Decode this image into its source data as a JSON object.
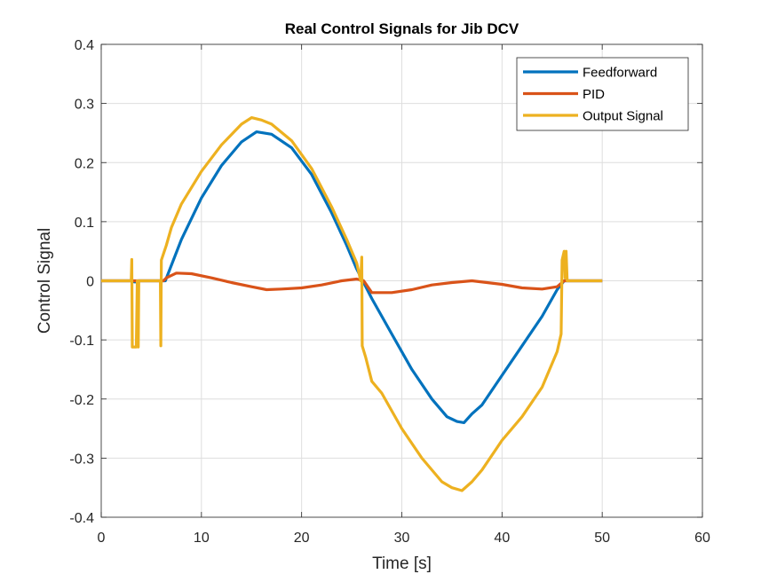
{
  "chart_data": {
    "type": "line",
    "title": "Real Control Signals for Jib DCV",
    "xlabel": "Time [s]",
    "ylabel": "Control Signal",
    "xlim": [
      0,
      60
    ],
    "ylim": [
      -0.4,
      0.4
    ],
    "x_ticks": [
      0,
      10,
      20,
      30,
      40,
      50,
      60
    ],
    "y_ticks": [
      -0.4,
      -0.3,
      -0.2,
      -0.1,
      0,
      0.1,
      0.2,
      0.3,
      0.4
    ],
    "x_tick_labels": [
      "0",
      "10",
      "20",
      "30",
      "40",
      "50",
      "60"
    ],
    "y_tick_labels": [
      "-0.4",
      "-0.3",
      "-0.2",
      "-0.1",
      "0",
      "0.1",
      "0.2",
      "0.3",
      "0.4"
    ],
    "grid": true,
    "legend_position": "top-right",
    "series": [
      {
        "name": "Feedforward",
        "color": "#0072BD",
        "points": [
          [
            0,
            0
          ],
          [
            3.2,
            0
          ],
          [
            3.3,
            -0.002
          ],
          [
            3.6,
            -0.002
          ],
          [
            3.7,
            0
          ],
          [
            6.0,
            0
          ],
          [
            6.4,
            0.0
          ],
          [
            8,
            0.07
          ],
          [
            10,
            0.14
          ],
          [
            12,
            0.195
          ],
          [
            14,
            0.235
          ],
          [
            15.5,
            0.252
          ],
          [
            17,
            0.248
          ],
          [
            19,
            0.225
          ],
          [
            21,
            0.18
          ],
          [
            23,
            0.115
          ],
          [
            24.5,
            0.06
          ],
          [
            25.5,
            0.02
          ],
          [
            26.1,
            0.0
          ],
          [
            27,
            -0.03
          ],
          [
            29,
            -0.09
          ],
          [
            31,
            -0.15
          ],
          [
            33,
            -0.2
          ],
          [
            34.5,
            -0.23
          ],
          [
            35.5,
            -0.238
          ],
          [
            36.2,
            -0.24
          ],
          [
            37,
            -0.225
          ],
          [
            38,
            -0.21
          ],
          [
            40,
            -0.16
          ],
          [
            42,
            -0.11
          ],
          [
            44,
            -0.06
          ],
          [
            45.5,
            -0.015
          ],
          [
            46.2,
            0.0
          ],
          [
            50,
            0.0
          ]
        ]
      },
      {
        "name": "PID",
        "color": "#D95319",
        "points": [
          [
            0,
            0
          ],
          [
            6.2,
            0
          ],
          [
            6.5,
            0.005
          ],
          [
            7.5,
            0.013
          ],
          [
            9,
            0.012
          ],
          [
            11,
            0.005
          ],
          [
            13,
            -0.003
          ],
          [
            15,
            -0.01
          ],
          [
            16.5,
            -0.015
          ],
          [
            18,
            -0.014
          ],
          [
            20,
            -0.012
          ],
          [
            22,
            -0.007
          ],
          [
            24,
            0.0
          ],
          [
            25.5,
            0.003
          ],
          [
            26.2,
            0.0
          ],
          [
            27,
            -0.02
          ],
          [
            29,
            -0.02
          ],
          [
            31,
            -0.015
          ],
          [
            33,
            -0.007
          ],
          [
            35,
            -0.003
          ],
          [
            37,
            0.0
          ],
          [
            38.5,
            -0.003
          ],
          [
            40,
            -0.006
          ],
          [
            42,
            -0.012
          ],
          [
            44,
            -0.014
          ],
          [
            45.5,
            -0.01
          ],
          [
            46.2,
            0.0
          ],
          [
            50,
            0.0
          ]
        ]
      },
      {
        "name": "Output Signal",
        "color": "#EDB120",
        "points": [
          [
            0,
            0
          ],
          [
            3.0,
            0
          ],
          [
            3.05,
            0.036
          ],
          [
            3.1,
            -0.112
          ],
          [
            3.5,
            -0.112
          ],
          [
            3.6,
            0
          ],
          [
            3.7,
            -0.112
          ],
          [
            3.75,
            0
          ],
          [
            5.9,
            0
          ],
          [
            5.95,
            -0.11
          ],
          [
            6.0,
            0.035
          ],
          [
            6.5,
            0.06
          ],
          [
            7,
            0.09
          ],
          [
            8,
            0.13
          ],
          [
            10,
            0.185
          ],
          [
            12,
            0.23
          ],
          [
            14,
            0.265
          ],
          [
            15,
            0.276
          ],
          [
            16,
            0.272
          ],
          [
            17,
            0.265
          ],
          [
            19,
            0.237
          ],
          [
            21,
            0.19
          ],
          [
            23,
            0.125
          ],
          [
            24.5,
            0.07
          ],
          [
            25.5,
            0.03
          ],
          [
            25.9,
            0.0
          ],
          [
            26.0,
            0.04
          ],
          [
            26.05,
            -0.11
          ],
          [
            26.4,
            -0.13
          ],
          [
            27,
            -0.17
          ],
          [
            28,
            -0.19
          ],
          [
            30,
            -0.25
          ],
          [
            32,
            -0.3
          ],
          [
            34,
            -0.34
          ],
          [
            35,
            -0.35
          ],
          [
            36,
            -0.355
          ],
          [
            37,
            -0.34
          ],
          [
            38,
            -0.32
          ],
          [
            40,
            -0.27
          ],
          [
            42,
            -0.23
          ],
          [
            44,
            -0.18
          ],
          [
            45.5,
            -0.12
          ],
          [
            45.9,
            -0.09
          ],
          [
            46.0,
            0.035
          ],
          [
            46.2,
            0.05
          ],
          [
            46.3,
            0.005
          ],
          [
            46.4,
            0.05
          ],
          [
            46.5,
            0.0
          ],
          [
            50,
            0.0
          ]
        ]
      }
    ]
  }
}
